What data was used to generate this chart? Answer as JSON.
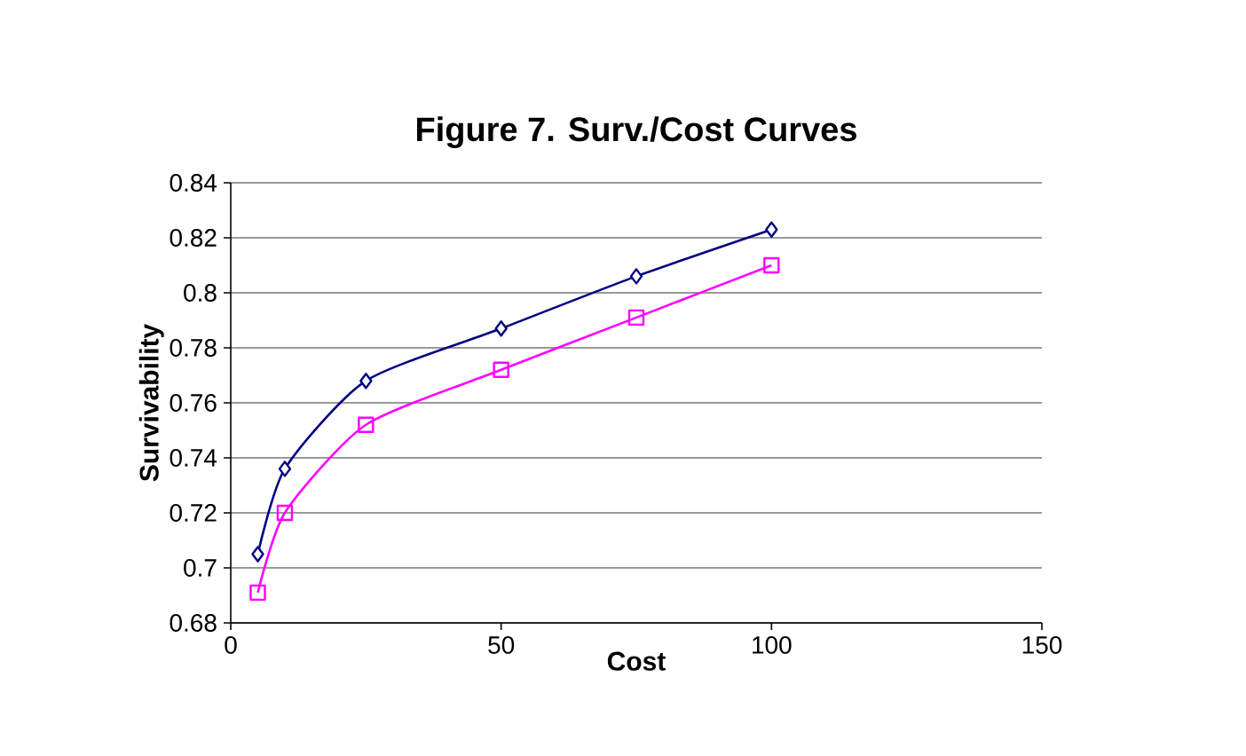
{
  "chart_data": {
    "type": "line",
    "title": "Figure 7. Surv./Cost Curves",
    "xlabel": "Cost",
    "ylabel": "Survivability",
    "xlim": [
      0,
      150
    ],
    "xticks": [
      0,
      50,
      100,
      150
    ],
    "ylim": [
      0.68,
      0.84
    ],
    "yticks": [
      0.68,
      0.7,
      0.72,
      0.74,
      0.76,
      0.78,
      0.8,
      0.82,
      0.84
    ],
    "grid": "y",
    "x": [
      5,
      10,
      25,
      50,
      75,
      100
    ],
    "series": [
      {
        "color": "#000080",
        "marker": "diamond",
        "values": [
          0.705,
          0.736,
          0.768,
          0.787,
          0.806,
          0.823
        ]
      },
      {
        "color": "#ff00ff",
        "marker": "square",
        "values": [
          0.691,
          0.72,
          0.752,
          0.772,
          0.791,
          0.81
        ]
      }
    ]
  }
}
